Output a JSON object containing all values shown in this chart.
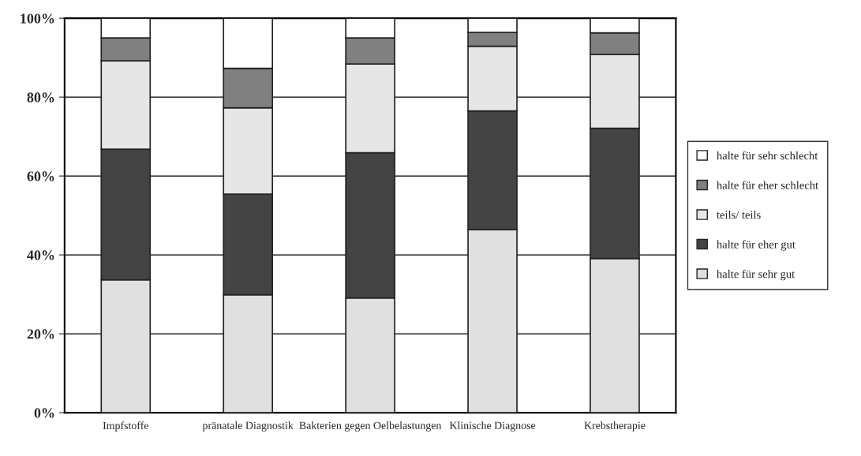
{
  "chart_data": {
    "type": "bar",
    "stacked": true,
    "categories": [
      "Impfstoffe",
      "pränatale Diagnostik",
      "Bakterien gegen Oelbelastungen",
      "Klinische Diagnose",
      "Krebstherapie"
    ],
    "series": [
      {
        "name": "halte für sehr gut",
        "color": "#e0e0e0",
        "values": [
          33.7,
          29.9,
          29.1,
          46.4,
          39.1
        ]
      },
      {
        "name": "halte für eher gut",
        "color": "#444444",
        "values": [
          33.1,
          25.5,
          36.8,
          30.1,
          33.0
        ]
      },
      {
        "name": "teils/ teils",
        "color": "#e6e6e6",
        "values": [
          22.4,
          21.9,
          22.5,
          16.4,
          18.7
        ]
      },
      {
        "name": "halte für eher schlecht",
        "color": "#808080",
        "values": [
          5.8,
          10.0,
          6.6,
          3.5,
          5.5
        ]
      },
      {
        "name": "halte für sehr schlecht",
        "color": "#ffffff",
        "values": [
          5.0,
          12.7,
          5.0,
          3.6,
          3.7
        ]
      }
    ],
    "ylim": [
      0,
      100
    ],
    "yticks": [
      {
        "value": 0,
        "label": "0%"
      },
      {
        "value": 20,
        "label": "20%"
      },
      {
        "value": 40,
        "label": "40%"
      },
      {
        "value": 60,
        "label": "60%"
      },
      {
        "value": 80,
        "label": "80%"
      },
      {
        "value": 100,
        "label": "100%"
      }
    ],
    "grid": "y",
    "legend": "right"
  }
}
